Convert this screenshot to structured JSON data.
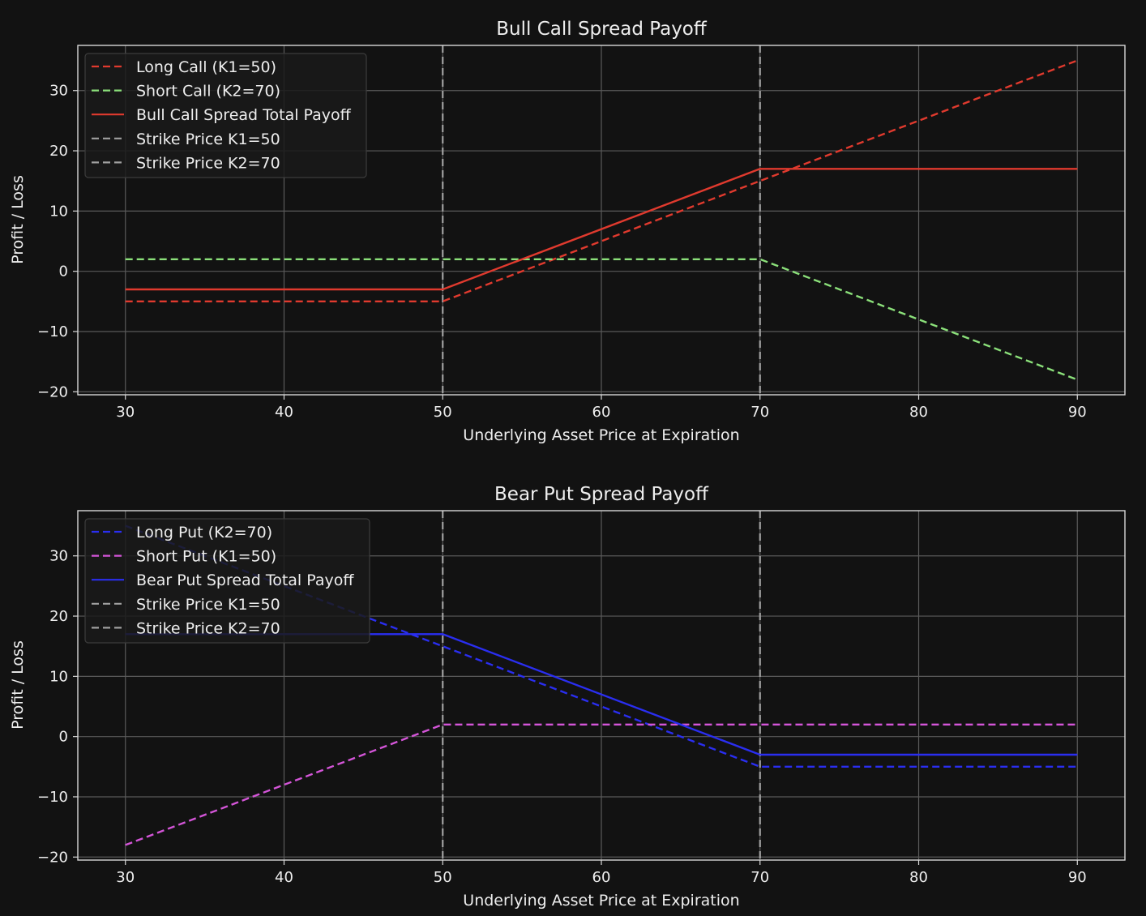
{
  "chart_data": [
    {
      "type": "line",
      "title": "Bull Call Spread Payoff",
      "xlabel": "Underlying Asset Price at Expiration",
      "ylabel": "Profit / Loss",
      "xlim": [
        27,
        93
      ],
      "ylim": [
        -20.5,
        37.5
      ],
      "xticks": [
        30,
        40,
        50,
        60,
        70,
        80,
        90
      ],
      "yticks": [
        -20,
        -10,
        0,
        10,
        20,
        30
      ],
      "grid": true,
      "legend_position": "top-left",
      "series": [
        {
          "name": "Long Call (K1=50)",
          "style": "dashed",
          "color": "#e03a2e",
          "x": [
            30,
            50,
            90
          ],
          "y": [
            -5,
            -5,
            35
          ]
        },
        {
          "name": "Short Call (K2=70)",
          "style": "dashed",
          "color": "#8be07a",
          "x": [
            30,
            70,
            90
          ],
          "y": [
            2,
            2,
            -18
          ]
        },
        {
          "name": "Bull Call Spread Total Payoff",
          "style": "solid",
          "color": "#e03a2e",
          "x": [
            30,
            50,
            70,
            90
          ],
          "y": [
            -3,
            -3,
            17,
            17
          ]
        },
        {
          "name": "Strike Price K1=50",
          "style": "vline-dashed",
          "color": "#a0a0a0",
          "x": [
            50
          ]
        },
        {
          "name": "Strike Price K2=70",
          "style": "vline-dashed",
          "color": "#a0a0a0",
          "x": [
            70
          ]
        }
      ]
    },
    {
      "type": "line",
      "title": "Bear Put Spread Payoff",
      "xlabel": "Underlying Asset Price at Expiration",
      "ylabel": "Profit / Loss",
      "xlim": [
        27,
        93
      ],
      "ylim": [
        -20.5,
        37.5
      ],
      "xticks": [
        30,
        40,
        50,
        60,
        70,
        80,
        90
      ],
      "yticks": [
        -20,
        -10,
        0,
        10,
        20,
        30
      ],
      "grid": true,
      "legend_position": "top-left",
      "series": [
        {
          "name": "Long Put (K2=70)",
          "style": "dashed",
          "color": "#2a2ef0",
          "x": [
            30,
            70,
            90
          ],
          "y": [
            35,
            -5,
            -5
          ]
        },
        {
          "name": "Short Put (K1=50)",
          "style": "dashed",
          "color": "#d455d8",
          "x": [
            30,
            50,
            90
          ],
          "y": [
            -18,
            2,
            2
          ]
        },
        {
          "name": "Bear Put Spread Total Payoff",
          "style": "solid",
          "color": "#2a2ef0",
          "x": [
            30,
            50,
            70,
            90
          ],
          "y": [
            17,
            17,
            -3,
            -3
          ]
        },
        {
          "name": "Strike Price K1=50",
          "style": "vline-dashed",
          "color": "#a0a0a0",
          "x": [
            50
          ]
        },
        {
          "name": "Strike Price K2=70",
          "style": "vline-dashed",
          "color": "#a0a0a0",
          "x": [
            70
          ]
        }
      ]
    }
  ]
}
